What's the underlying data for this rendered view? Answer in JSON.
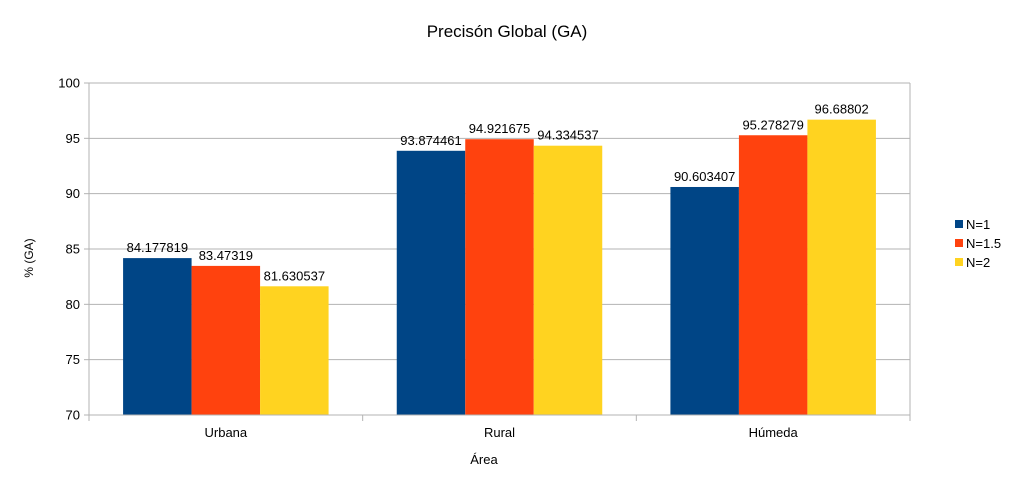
{
  "chart_data": {
    "type": "bar",
    "title": "Precisón Global (GA)",
    "xlabel": "Área",
    "ylabel": "% (GA)",
    "categories": [
      "Urbana",
      "Rural",
      "Húmeda"
    ],
    "ylim": [
      70,
      100
    ],
    "yticks": [
      70,
      75,
      80,
      85,
      90,
      95,
      100
    ],
    "grid": true,
    "legend_position": "right",
    "series": [
      {
        "name": "N=1",
        "color": "#004586",
        "values": [
          84.177819,
          93.874461,
          90.603407
        ],
        "labels": [
          "84.177819",
          "93.874461",
          "90.603407"
        ]
      },
      {
        "name": "N=1.5",
        "color": "#ff420e",
        "values": [
          83.47319,
          94.921675,
          95.278279
        ],
        "labels": [
          "83.47319",
          "94.921675",
          "95.278279"
        ]
      },
      {
        "name": "N=2",
        "color": "#ffd320",
        "values": [
          81.630537,
          94.334537,
          96.68802
        ],
        "labels": [
          "81.630537",
          "94.334537",
          "96.68802"
        ]
      }
    ]
  }
}
